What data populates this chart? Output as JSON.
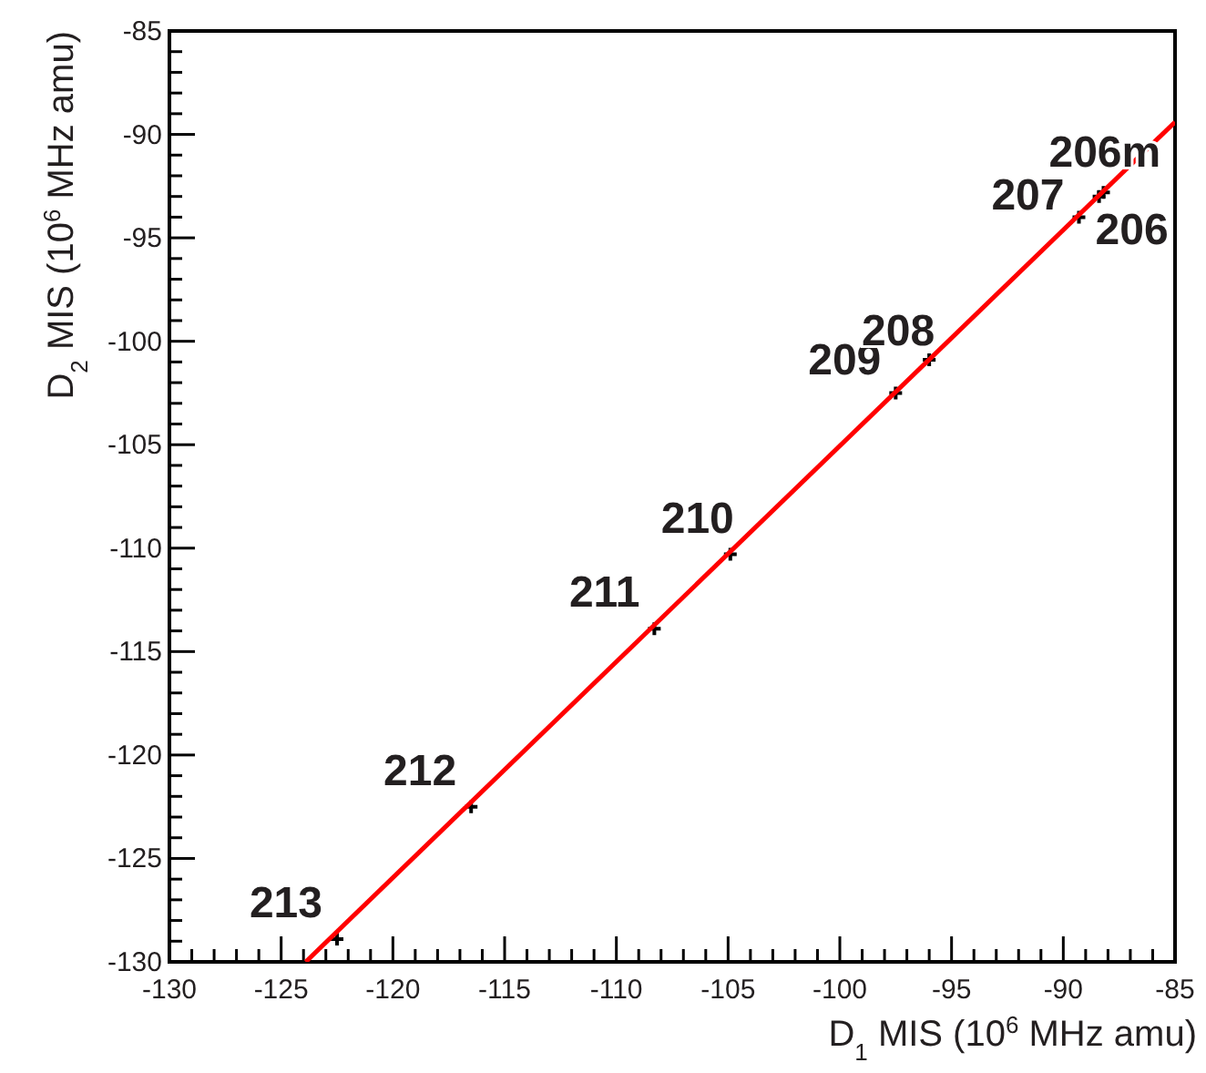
{
  "chart_data": {
    "type": "scatter",
    "xlabel": "D$_{1}$ MIS (10$^{6}$ MHz amu)",
    "ylabel": "D$_{2}$ MIS (10$^{6}$ MHz amu)",
    "xlim": [
      -130,
      -85
    ],
    "ylim": [
      -130,
      -85
    ],
    "xticks": [
      -130,
      -125,
      -120,
      -115,
      -110,
      -105,
      -100,
      -95,
      -90,
      -85
    ],
    "yticks": [
      -130,
      -125,
      -120,
      -115,
      -110,
      -105,
      -100,
      -95,
      -90,
      -85
    ],
    "grid": false,
    "marker": "cross",
    "annotations": [
      {
        "text": "213",
        "x": -122.5,
        "y": -128.9
      },
      {
        "text": "212",
        "x": -116.5,
        "y": -122.5
      },
      {
        "text": "211",
        "x": -108.3,
        "y": -113.9
      },
      {
        "text": "210",
        "x": -104.9,
        "y": -110.3
      },
      {
        "text": "209",
        "x": -97.5,
        "y": -102.5
      },
      {
        "text": "208",
        "x": -96.0,
        "y": -100.9
      },
      {
        "text": "207",
        "x": -89.3,
        "y": -94.0
      },
      {
        "text": "206",
        "x": -88.4,
        "y": -93.0
      },
      {
        "text": "206m",
        "x": -88.2,
        "y": -92.8
      }
    ],
    "series": [
      {
        "color": "#000000",
        "x": [
          -122.5,
          -116.5,
          -108.3,
          -104.9,
          -97.5,
          -96.0,
          -89.3,
          -88.4,
          -88.2
        ],
        "values": [
          -128.9,
          -122.5,
          -113.9,
          -110.3,
          -102.5,
          -100.9,
          -94.0,
          -93.0,
          -92.8
        ]
      },
      {
        "type": "line",
        "color": "#ff0000",
        "marker": "none",
        "line_style": "solid",
        "x": [
          -123.9,
          -85
        ],
        "values": [
          -130,
          -89.4
        ]
      }
    ]
  }
}
